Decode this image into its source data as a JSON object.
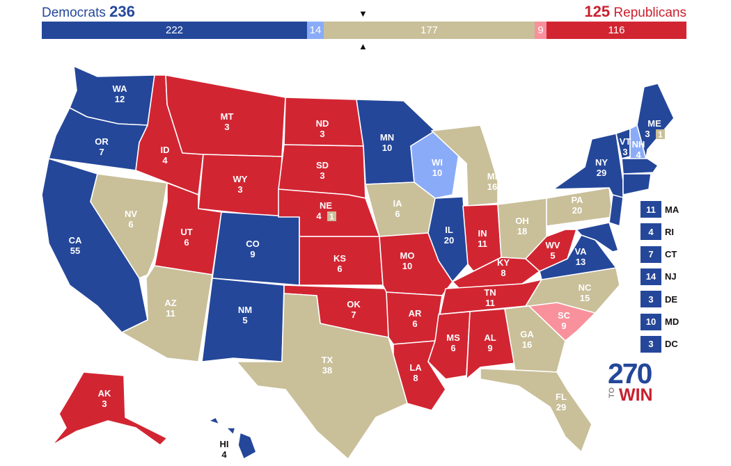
{
  "header": {
    "dem_label": "Democrats",
    "dem_total": "236",
    "rep_total": "125",
    "rep_label": "Republicans"
  },
  "colors": {
    "dem_safe": "#24479a",
    "dem_lean": "#8aabf7",
    "tossup": "#c9bf99",
    "rep_lean": "#f8919b",
    "rep_safe": "#d22532"
  },
  "bar": {
    "dem_safe": "222",
    "dem_lean": "14",
    "tossup": "177",
    "rep_lean": "9",
    "rep_safe": "116"
  },
  "states": {
    "WA": {
      "name": "WA",
      "ev": "12",
      "rating": "dem_safe"
    },
    "OR": {
      "name": "OR",
      "ev": "7",
      "rating": "dem_safe"
    },
    "CA": {
      "name": "CA",
      "ev": "55",
      "rating": "dem_safe"
    },
    "NV": {
      "name": "NV",
      "ev": "6",
      "rating": "tossup"
    },
    "ID": {
      "name": "ID",
      "ev": "4",
      "rating": "rep_safe"
    },
    "MT": {
      "name": "MT",
      "ev": "3",
      "rating": "rep_safe"
    },
    "WY": {
      "name": "WY",
      "ev": "3",
      "rating": "rep_safe"
    },
    "UT": {
      "name": "UT",
      "ev": "6",
      "rating": "rep_safe"
    },
    "AZ": {
      "name": "AZ",
      "ev": "11",
      "rating": "tossup"
    },
    "CO": {
      "name": "CO",
      "ev": "9",
      "rating": "dem_safe"
    },
    "NM": {
      "name": "NM",
      "ev": "5",
      "rating": "dem_safe"
    },
    "ND": {
      "name": "ND",
      "ev": "3",
      "rating": "rep_safe"
    },
    "SD": {
      "name": "SD",
      "ev": "3",
      "rating": "rep_safe"
    },
    "NE": {
      "name": "NE",
      "ev": "4",
      "rating": "rep_safe",
      "district": "1"
    },
    "KS": {
      "name": "KS",
      "ev": "6",
      "rating": "rep_safe"
    },
    "OK": {
      "name": "OK",
      "ev": "7",
      "rating": "rep_safe"
    },
    "TX": {
      "name": "TX",
      "ev": "38",
      "rating": "tossup"
    },
    "MN": {
      "name": "MN",
      "ev": "10",
      "rating": "dem_safe"
    },
    "IA": {
      "name": "IA",
      "ev": "6",
      "rating": "tossup"
    },
    "MO": {
      "name": "MO",
      "ev": "10",
      "rating": "rep_safe"
    },
    "AR": {
      "name": "AR",
      "ev": "6",
      "rating": "rep_safe"
    },
    "LA": {
      "name": "LA",
      "ev": "8",
      "rating": "rep_safe"
    },
    "WI": {
      "name": "WI",
      "ev": "10",
      "rating": "dem_lean"
    },
    "IL": {
      "name": "IL",
      "ev": "20",
      "rating": "dem_safe"
    },
    "MI": {
      "name": "MI",
      "ev": "16",
      "rating": "tossup"
    },
    "IN": {
      "name": "IN",
      "ev": "11",
      "rating": "rep_safe"
    },
    "OH": {
      "name": "OH",
      "ev": "18",
      "rating": "tossup"
    },
    "KY": {
      "name": "KY",
      "ev": "8",
      "rating": "rep_safe"
    },
    "TN": {
      "name": "TN",
      "ev": "11",
      "rating": "rep_safe"
    },
    "MS": {
      "name": "MS",
      "ev": "6",
      "rating": "rep_safe"
    },
    "AL": {
      "name": "AL",
      "ev": "9",
      "rating": "rep_safe"
    },
    "GA": {
      "name": "GA",
      "ev": "16",
      "rating": "tossup"
    },
    "FL": {
      "name": "FL",
      "ev": "29",
      "rating": "tossup"
    },
    "SC": {
      "name": "SC",
      "ev": "9",
      "rating": "rep_lean"
    },
    "NC": {
      "name": "NC",
      "ev": "15",
      "rating": "tossup"
    },
    "VA": {
      "name": "VA",
      "ev": "13",
      "rating": "dem_safe"
    },
    "WV": {
      "name": "WV",
      "ev": "5",
      "rating": "rep_safe"
    },
    "PA": {
      "name": "PA",
      "ev": "20",
      "rating": "tossup"
    },
    "NY": {
      "name": "NY",
      "ev": "29",
      "rating": "dem_safe"
    },
    "VT": {
      "name": "VT",
      "ev": "3",
      "rating": "dem_safe"
    },
    "NH": {
      "name": "NH",
      "ev": "4",
      "rating": "dem_lean"
    },
    "ME": {
      "name": "ME",
      "ev": "3",
      "rating": "dem_safe",
      "district": "1"
    },
    "AK": {
      "name": "AK",
      "ev": "3",
      "rating": "rep_safe"
    },
    "HI": {
      "name": "HI",
      "ev": "4",
      "rating": "dem_safe"
    }
  },
  "small_states": [
    {
      "ev": "11",
      "name": "MA"
    },
    {
      "ev": "4",
      "name": "RI"
    },
    {
      "ev": "7",
      "name": "CT"
    },
    {
      "ev": "14",
      "name": "NJ"
    },
    {
      "ev": "3",
      "name": "DE"
    },
    {
      "ev": "10",
      "name": "MD"
    },
    {
      "ev": "3",
      "name": "DC"
    }
  ],
  "logo": {
    "number": "270",
    "to": "TO",
    "win": "WIN"
  }
}
